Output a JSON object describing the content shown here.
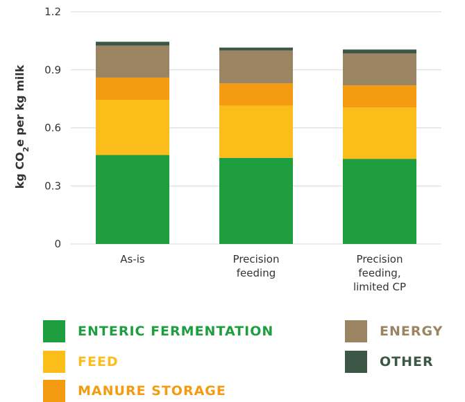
{
  "chart_data": {
    "type": "bar",
    "stacked": true,
    "categories": [
      [
        "As-is"
      ],
      [
        "Precision",
        "feeding"
      ],
      [
        "Precision",
        "feeding,",
        "limited CP"
      ]
    ],
    "ylabel_main": "kg CO",
    "ylabel_sub": "2",
    "ylabel_rest": "e per kg milk",
    "ylim": [
      0,
      1.2
    ],
    "yticks": [
      "0",
      "0.3",
      "0.6",
      "0.9",
      "1.2"
    ],
    "ytick_values": [
      0,
      0.3,
      0.6,
      0.9,
      1.2
    ],
    "grid": true,
    "series": [
      {
        "name": "ENTERIC FERMENTATION",
        "color": "#1e9e3e",
        "values": [
          0.46,
          0.445,
          0.44
        ]
      },
      {
        "name": "FEED",
        "color": "#fbbd1a",
        "values": [
          0.285,
          0.27,
          0.265
        ]
      },
      {
        "name": "MANURE STORAGE",
        "color": "#f49b11",
        "values": [
          0.115,
          0.115,
          0.115
        ]
      },
      {
        "name": "ENERGY",
        "color": "#9a8462",
        "values": [
          0.165,
          0.17,
          0.165
        ]
      },
      {
        "name": "OTHER",
        "color": "#3c5745",
        "values": [
          0.02,
          0.015,
          0.02
        ]
      }
    ],
    "legend_placement": "bottom"
  }
}
